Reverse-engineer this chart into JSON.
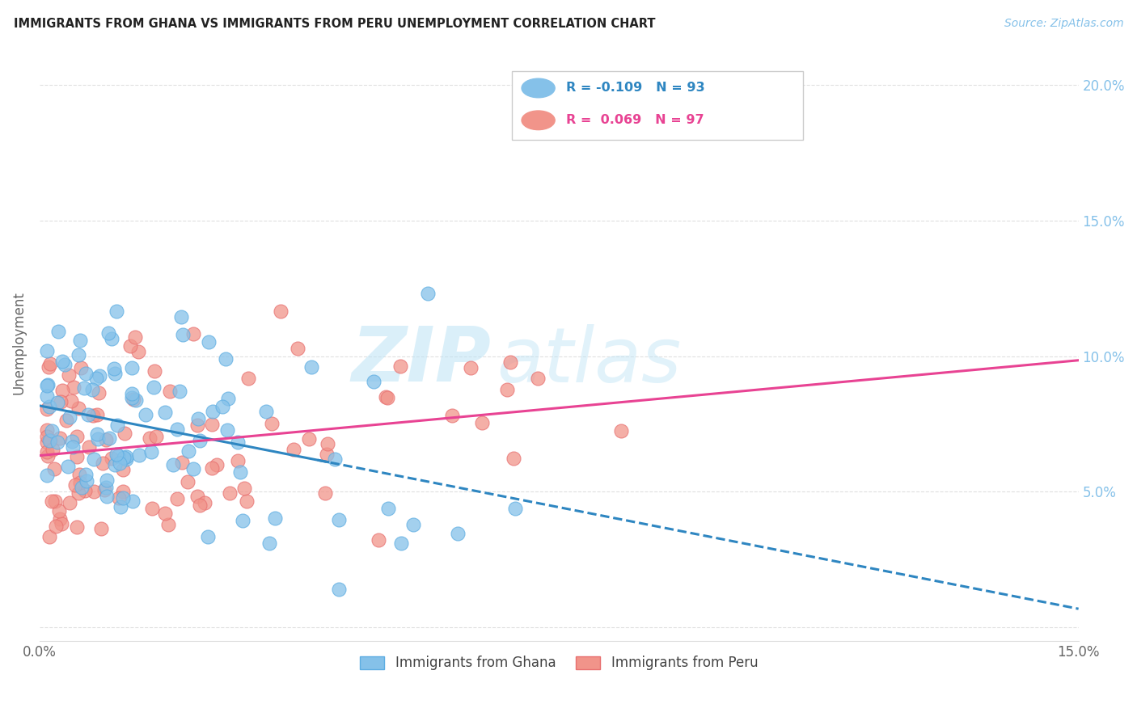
{
  "title": "IMMIGRANTS FROM GHANA VS IMMIGRANTS FROM PERU UNEMPLOYMENT CORRELATION CHART",
  "source": "Source: ZipAtlas.com",
  "ylabel_label": "Unemployment",
  "right_yticks": [
    0.0,
    0.05,
    0.1,
    0.15,
    0.2
  ],
  "right_ytick_labels": [
    "",
    "5.0%",
    "10.0%",
    "15.0%",
    "20.0%"
  ],
  "xlim": [
    0.0,
    0.15
  ],
  "ylim": [
    -0.005,
    0.215
  ],
  "ghana_color": "#85C1E9",
  "ghana_edge_color": "#5DADE2",
  "peru_color": "#F1948A",
  "peru_edge_color": "#E87070",
  "ghana_R": -0.109,
  "ghana_N": 93,
  "peru_R": 0.069,
  "peru_N": 97,
  "ghana_label": "Immigrants from Ghana",
  "peru_label": "Immigrants from Peru",
  "watermark_zip": "ZIP",
  "watermark_atlas": "atlas",
  "trend_ghana_color": "#2E86C1",
  "trend_peru_color": "#E84393",
  "grid_color": "#DDDDDD",
  "title_color": "#222222",
  "source_color": "#85C1E9",
  "axis_label_color": "#666666",
  "tick_color": "#666666"
}
